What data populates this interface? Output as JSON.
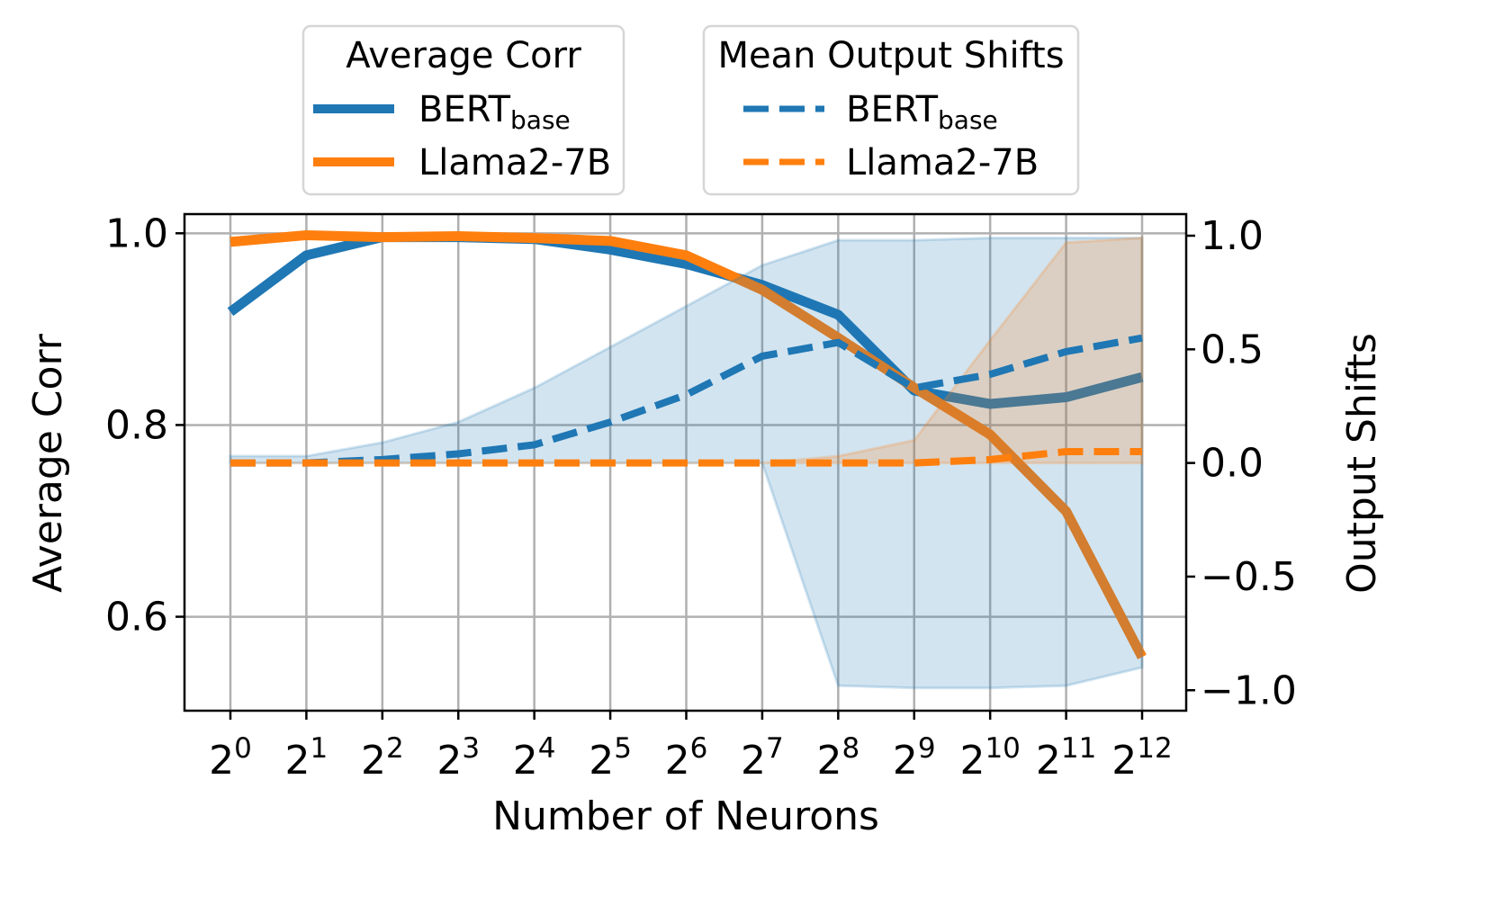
{
  "chart_data": {
    "type": "line",
    "xlabel": "Number of Neurons",
    "ylabel_left": "Average Corr",
    "ylabel_right": "Output Shifts",
    "x_base": 2,
    "x_exponents": [
      0,
      1,
      2,
      3,
      4,
      5,
      6,
      7,
      8,
      9,
      10,
      11,
      12
    ],
    "x_tick_labels": [
      "2^0",
      "2^1",
      "2^2",
      "2^3",
      "2^4",
      "2^5",
      "2^6",
      "2^7",
      "2^8",
      "2^9",
      "2^10",
      "2^11",
      "2^12"
    ],
    "x_scale": "log2",
    "ylim_left": [
      0.502,
      1.02
    ],
    "ylim_right": [
      -1.09,
      1.095
    ],
    "yticks_left": [
      "0.6",
      "0.8",
      "1.0"
    ],
    "yticks_right": [
      "1.0",
      "0.5",
      "0.0",
      "−0.5",
      "−1.0"
    ],
    "grid": true,
    "legends": [
      {
        "title": "Average Corr",
        "placement": "top-left-outside",
        "entries": [
          {
            "label": "BERT",
            "sub": "base",
            "style": "solid",
            "color": "#1f77b4"
          },
          {
            "label": "Llama2-7B",
            "sub": "",
            "style": "solid",
            "color": "#ff7f0e"
          }
        ]
      },
      {
        "title": "Mean Output Shifts",
        "placement": "top-right-outside",
        "entries": [
          {
            "label": "BERT",
            "sub": "base",
            "style": "dashed",
            "color": "#1f77b4"
          },
          {
            "label": "Llama2-7B",
            "sub": "",
            "style": "dashed",
            "color": "#ff7f0e"
          }
        ]
      }
    ],
    "series": [
      {
        "name": "BERT_base",
        "axis": "left",
        "metric": "Average Corr",
        "style": "solid",
        "color": "#1f77b4",
        "values": [
          0.918,
          0.977,
          0.996,
          0.996,
          0.994,
          0.983,
          0.968,
          0.946,
          0.915,
          0.836,
          0.822,
          0.829,
          0.85
        ]
      },
      {
        "name": "Llama2-7B",
        "axis": "left",
        "metric": "Average Corr",
        "style": "solid",
        "color": "#ff7f0e",
        "values": [
          0.991,
          0.998,
          0.996,
          0.997,
          0.995,
          0.992,
          0.977,
          0.941,
          0.891,
          0.839,
          0.79,
          0.71,
          0.558
        ]
      },
      {
        "name": "BERT_base",
        "axis": "right",
        "metric": "Mean Output Shifts",
        "style": "dashed",
        "color": "#1f77b4",
        "values": [
          0.0,
          0.0,
          0.015,
          0.04,
          0.08,
          0.18,
          0.3,
          0.47,
          0.53,
          0.33,
          0.39,
          0.49,
          0.55
        ],
        "band_upper": [
          0.03,
          0.03,
          0.09,
          0.18,
          0.33,
          0.51,
          0.69,
          0.87,
          0.98,
          0.98,
          0.99,
          0.99,
          0.99
        ],
        "band_lower": [
          0,
          0,
          0,
          0,
          0,
          0,
          0,
          0,
          -0.98,
          -0.99,
          -0.99,
          -0.98,
          -0.9
        ]
      },
      {
        "name": "Llama2-7B",
        "axis": "right",
        "metric": "Mean Output Shifts",
        "style": "dashed",
        "color": "#ff7f0e",
        "values": [
          0,
          0,
          0,
          0,
          0,
          0,
          0,
          0,
          0,
          0,
          0.015,
          0.05,
          0.05
        ],
        "band_upper": [
          0,
          0,
          0,
          0,
          0,
          0,
          0,
          0,
          0.03,
          0.1,
          0.54,
          0.97,
          0.99
        ],
        "band_lower": [
          0,
          0,
          0,
          0,
          0,
          0,
          0,
          0,
          0,
          0,
          0,
          0,
          0
        ]
      }
    ]
  }
}
